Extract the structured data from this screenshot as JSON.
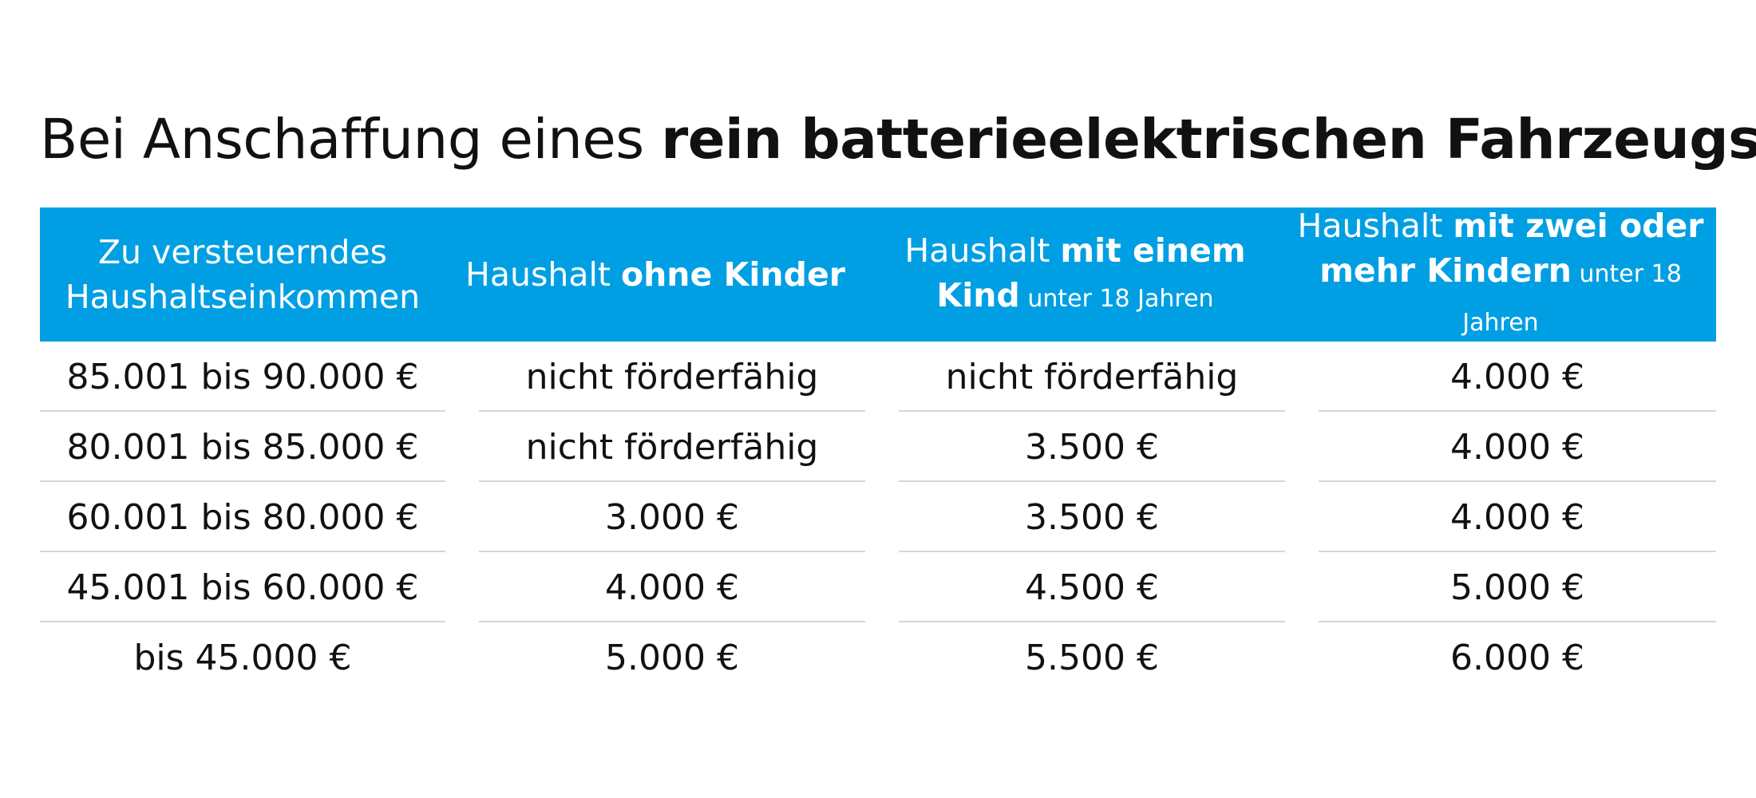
{
  "title": {
    "plain": "Bei Anschaffung eines ",
    "bold": "rein batterieelektrischen Fahrzeugs"
  },
  "header": {
    "col0": {
      "line1": "Zu versteuerndes",
      "line2": "Haushaltseinkommen"
    },
    "col1": {
      "plain": "Haushalt ",
      "bold": "ohne Kinder"
    },
    "col2": {
      "plain": "Haushalt ",
      "bold1": "mit einem",
      "bold2": "Kind",
      "small": " unter 18 Jahren"
    },
    "col3": {
      "plain": "Haushalt ",
      "bold1": "mit zwei oder",
      "bold2": "mehr Kindern",
      "small": " unter 18 Jahren"
    }
  },
  "rows": [
    {
      "income": "85.001 bis 90.000 €",
      "none": "nicht förderfähig",
      "one": "nicht förderfähig",
      "two": "4.000 €"
    },
    {
      "income": "80.001 bis 85.000 €",
      "none": "nicht förderfähig",
      "one": "3.500 €",
      "two": "4.000 €"
    },
    {
      "income": "60.001 bis 80.000 €",
      "none": "3.000 €",
      "one": "3.500 €",
      "two": "4.000 €"
    },
    {
      "income": "45.001 bis 60.000 €",
      "none": "4.000 €",
      "one": "4.500 €",
      "two": "5.000 €"
    },
    {
      "income": "bis 45.000 €",
      "none": "5.000 €",
      "one": "5.500 €",
      "two": "6.000 €"
    }
  ],
  "colors": {
    "header_bg": "#009fe3",
    "header_text": "#ffffff",
    "rule": "#d6d6d6",
    "text": "#111111"
  }
}
